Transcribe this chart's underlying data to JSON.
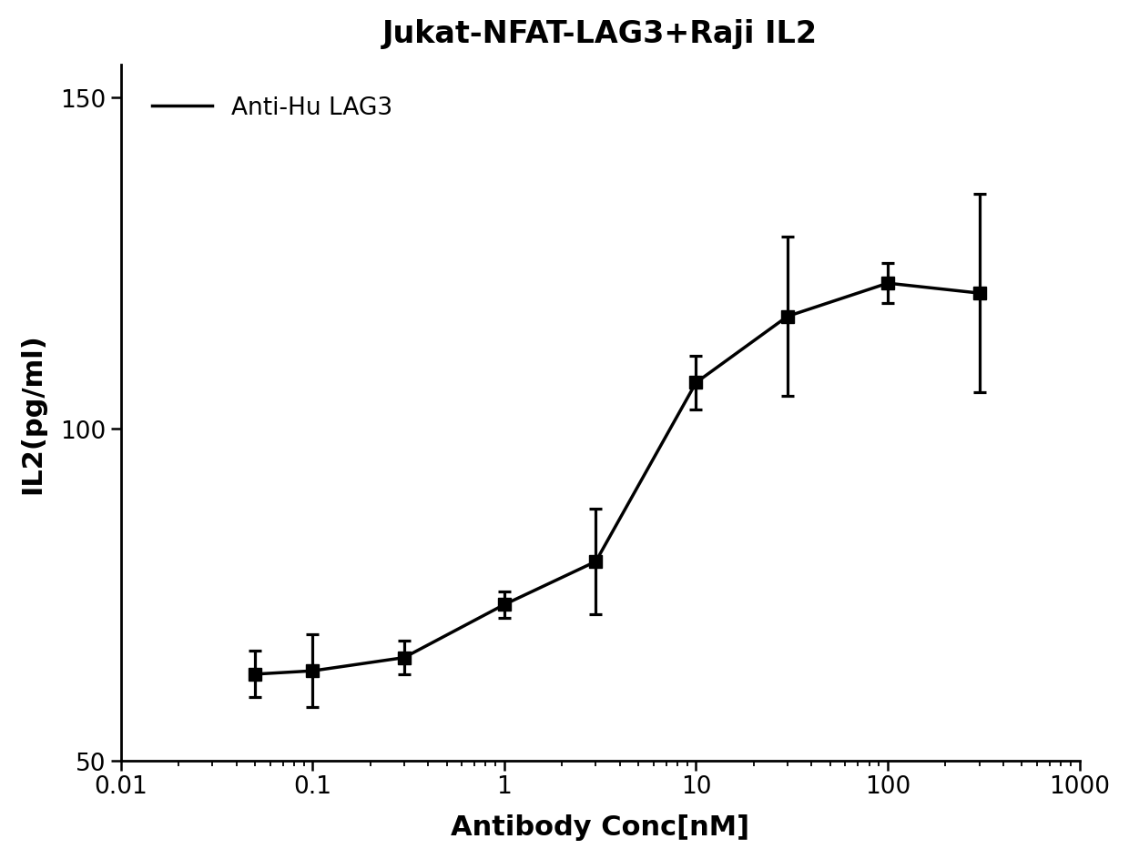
{
  "title": "Jukat-NFAT-LAG3+Raji IL2",
  "xlabel": "Antibody Conc[nM]",
  "ylabel": "IL2(pg/ml)",
  "legend_label": "Anti-Hu LAG3",
  "x_data": [
    0.05,
    0.1,
    0.3,
    1.0,
    3.0,
    10.0,
    30.0,
    100.0,
    300.0
  ],
  "y_data": [
    63.0,
    63.5,
    65.5,
    73.5,
    80.0,
    107.0,
    117.0,
    122.0,
    120.5
  ],
  "y_err": [
    3.5,
    5.5,
    2.5,
    2.0,
    8.0,
    4.0,
    12.0,
    3.0,
    15.0
  ],
  "xlim_log": [
    0.015,
    600
  ],
  "ylim": [
    50,
    155
  ],
  "yticks": [
    50,
    100,
    150
  ],
  "xticks": [
    0.01,
    0.1,
    1,
    10,
    100,
    1000
  ],
  "xtick_labels": [
    "0.01",
    "0.1",
    "1",
    "10",
    "100",
    "1000"
  ],
  "line_color": "#000000",
  "marker_color": "#000000",
  "marker": "s",
  "title_fontsize": 24,
  "label_fontsize": 22,
  "tick_fontsize": 19,
  "legend_fontsize": 19,
  "background_color": "#ffffff",
  "line_width": 2.5,
  "marker_size": 10,
  "cap_size": 5
}
